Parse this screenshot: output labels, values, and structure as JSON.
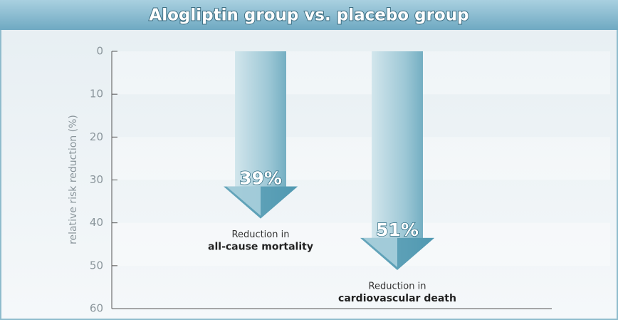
{
  "chart_data": {
    "type": "arrow-bar",
    "title": "Alogliptin group vs. placebo group",
    "y_label": "relative risk reduction (%)",
    "categories": [
      [
        "Reduction in",
        "all-cause mortality"
      ],
      [
        "Reduction in",
        "cardiovascular death"
      ]
    ],
    "values": [
      39,
      51
    ],
    "value_labels": [
      "39%",
      "51%"
    ],
    "color": "#4f98b0",
    "ylim": [
      0,
      60
    ],
    "y_inverted": true,
    "yticks": [
      0,
      10,
      20,
      30,
      40,
      50,
      60
    ]
  }
}
